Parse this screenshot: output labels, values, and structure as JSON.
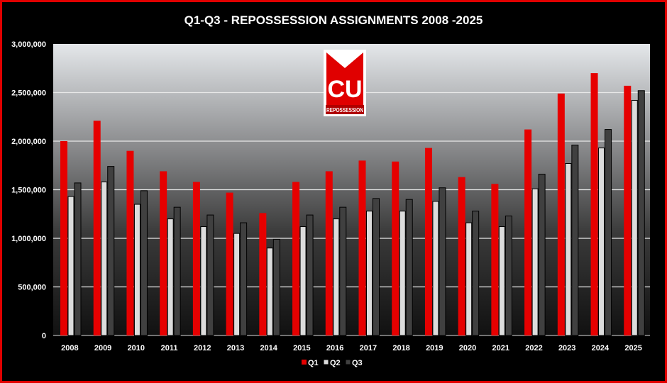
{
  "chart_data": {
    "type": "bar",
    "title": "Q1-Q3 - REPOSSESSION ASSIGNMENTS 2008 -2025",
    "xlabel": "",
    "ylabel": "",
    "ylim": [
      0,
      3000000
    ],
    "yticks": [
      0,
      500000,
      1000000,
      1500000,
      2000000,
      2500000,
      3000000
    ],
    "ytick_labels": [
      "0",
      "500,000",
      "1,000,000",
      "1,500,000",
      "2,000,000",
      "2,500,000",
      "3,000,000"
    ],
    "grid": true,
    "legend": "bottom",
    "categories": [
      "2008",
      "2009",
      "2010",
      "2011",
      "2012",
      "2013",
      "2014",
      "2015",
      "2016",
      "2017",
      "2018",
      "2019",
      "2020",
      "2021",
      "2022",
      "2023",
      "2024",
      "2025"
    ],
    "series": [
      {
        "name": "Q1",
        "color": "#e60000",
        "values": [
          2000000,
          2210000,
          1900000,
          1690000,
          1580000,
          1470000,
          1260000,
          1580000,
          1690000,
          1800000,
          1790000,
          1930000,
          1630000,
          1560000,
          2120000,
          2490000,
          2700000,
          2570000
        ]
      },
      {
        "name": "Q2",
        "color": "#dcdcdc",
        "values": [
          1430000,
          1580000,
          1350000,
          1200000,
          1120000,
          1050000,
          900000,
          1120000,
          1200000,
          1280000,
          1280000,
          1380000,
          1160000,
          1120000,
          1510000,
          1770000,
          1930000,
          2420000
        ]
      },
      {
        "name": "Q3",
        "color": "#404040",
        "values": [
          1570000,
          1740000,
          1490000,
          1320000,
          1240000,
          1160000,
          990000,
          1240000,
          1320000,
          1410000,
          1400000,
          1520000,
          1280000,
          1230000,
          1660000,
          1960000,
          2120000,
          2520000
        ]
      }
    ]
  },
  "logo": {
    "letters": "CU",
    "text": "REPOSSESSION",
    "color": "#e00000"
  }
}
